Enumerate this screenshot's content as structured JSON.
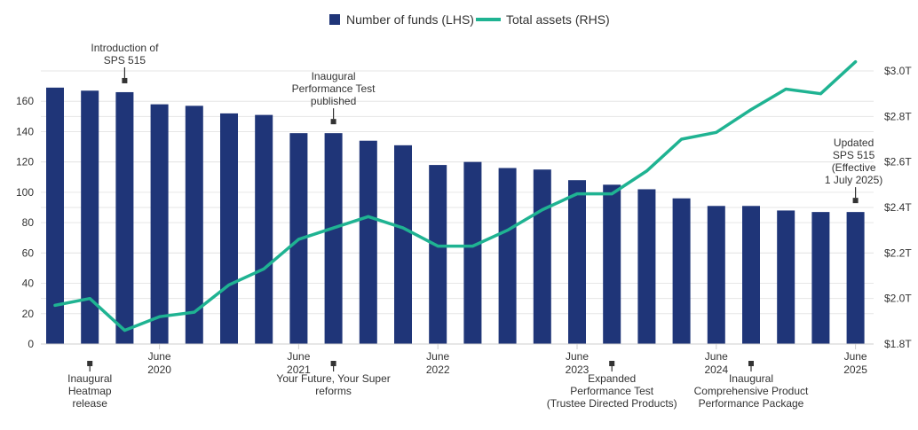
{
  "chart_data": {
    "type": "bar+line",
    "colors": {
      "bars": "#1f3578",
      "line": "#1fb392"
    },
    "legend": {
      "position": "top-center",
      "entries": [
        {
          "name": "Number of funds (LHS)",
          "shape": "square"
        },
        {
          "name": "Total assets (RHS)",
          "shape": "line"
        }
      ]
    },
    "y_left": {
      "ticks": [
        "0",
        "20",
        "40",
        "60",
        "80",
        "100",
        "120",
        "140",
        "160"
      ],
      "range": [
        0,
        180
      ]
    },
    "y_right": {
      "ticks": [
        "$1.8T",
        "$2.0T",
        "$2.2T",
        "$2.4T",
        "$2.6T",
        "$2.8T",
        "$3.0T"
      ],
      "range": [
        1.8,
        3.0
      ]
    },
    "grid": true,
    "x_labels": [
      {
        "index": 3,
        "lines": [
          "June",
          "2020"
        ]
      },
      {
        "index": 7,
        "lines": [
          "June",
          "2021"
        ]
      },
      {
        "index": 11,
        "lines": [
          "June",
          "2022"
        ]
      },
      {
        "index": 15,
        "lines": [
          "June",
          "2023"
        ]
      },
      {
        "index": 19,
        "lines": [
          "June",
          "2024"
        ]
      },
      {
        "index": 23,
        "lines": [
          "June",
          "2025"
        ]
      }
    ],
    "series": [
      {
        "name": "Number of funds (LHS)",
        "kind": "bar",
        "axis": "left",
        "values": [
          169,
          167,
          166,
          158,
          157,
          152,
          151,
          139,
          139,
          134,
          131,
          118,
          120,
          116,
          115,
          108,
          105,
          102,
          96,
          91,
          91,
          88,
          87,
          87
        ]
      },
      {
        "name": "Total assets (RHS)",
        "kind": "line",
        "axis": "right",
        "values": [
          1.97,
          2.0,
          1.86,
          1.92,
          1.94,
          2.06,
          2.13,
          2.26,
          2.31,
          2.36,
          2.31,
          2.23,
          2.23,
          2.3,
          2.39,
          2.46,
          2.46,
          2.56,
          2.7,
          2.73,
          2.83,
          2.92,
          2.9,
          3.04
        ]
      }
    ],
    "annotations": [
      {
        "index": 2,
        "side": "top",
        "lines": [
          "Introduction of",
          "SPS 515"
        ]
      },
      {
        "index": 8,
        "side": "top",
        "lines": [
          "Inaugural",
          "Performance Test",
          "published"
        ]
      },
      {
        "index": 23,
        "side": "top",
        "lines": [
          "Updated",
          "SPS 515",
          "(Effective",
          "1 July 2025)"
        ]
      },
      {
        "index": 1,
        "side": "bottom",
        "lines": [
          "Inaugural",
          "Heatmap",
          "release"
        ]
      },
      {
        "index": 8,
        "side": "bottom",
        "lines": [
          "Your Future, Your Super",
          "reforms"
        ]
      },
      {
        "index": 16,
        "side": "bottom",
        "lines": [
          "Expanded",
          "Performance Test",
          "(Trustee Directed Products)"
        ]
      },
      {
        "index": 20,
        "side": "bottom",
        "lines": [
          "Inaugural",
          "Comprehensive Product",
          "Performance Package"
        ]
      }
    ]
  }
}
